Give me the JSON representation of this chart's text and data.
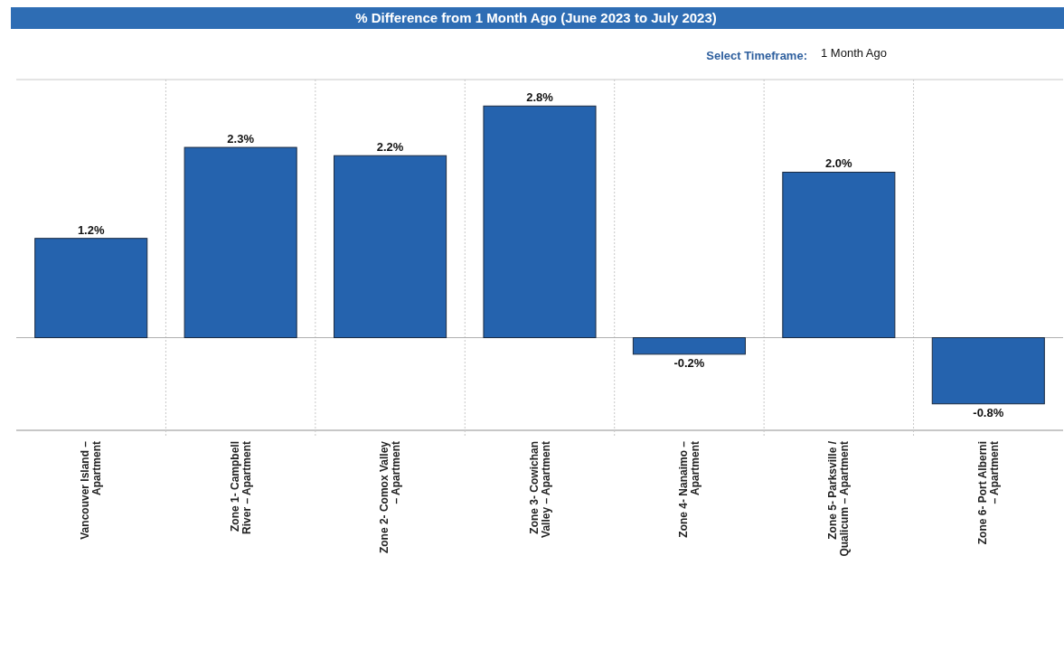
{
  "chart_data": {
    "type": "bar",
    "title": "% Difference from 1 Month Ago (June 2023 to July 2023)",
    "annotations": [
      "Select Timeframe:",
      "1 Month Ago"
    ],
    "categories": [
      "Vancouver Island – Apartment",
      "Zone 1- Campbell River – Apartment",
      "Zone 2- Comox Valley – Apartment",
      "Zone 3- Cowichan Valley – Apartment",
      "Zone 4- Nanaimo – Apartment",
      "Zone 5- Parksville / Qualicum – Apartment",
      "Zone 6- Port Alberni – Apartment"
    ],
    "values": [
      1.2,
      2.3,
      2.2,
      2.8,
      -0.2,
      2.0,
      -0.8
    ],
    "value_labels": [
      "1.2%",
      "2.3%",
      "2.2%",
      "2.8%",
      "-0.2%",
      "2.0%",
      "-0.8%"
    ],
    "color": "#2563ae",
    "ylim": [
      -1.12,
      3.12
    ],
    "grid": "x"
  }
}
